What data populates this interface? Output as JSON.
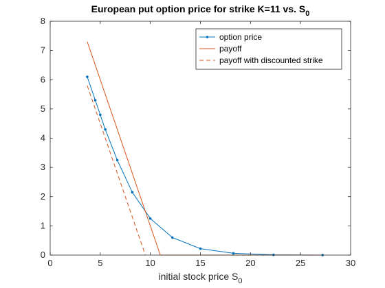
{
  "chart_data": {
    "type": "line",
    "title": "European put option price for strike K=11 vs. S",
    "title_subscript": "0",
    "xlabel": "initial stock price S",
    "xlabel_subscript": "0",
    "ylabel": "",
    "xlim": [
      0,
      30
    ],
    "ylim": [
      0,
      8
    ],
    "xticks": [
      0,
      5,
      10,
      15,
      20,
      25,
      30
    ],
    "yticks": [
      0,
      1,
      2,
      3,
      4,
      5,
      6,
      7,
      8
    ],
    "grid": false,
    "legend_position": "top-right",
    "series": [
      {
        "name": "option price",
        "style": "line-with-dot-markers",
        "color": "#0072BD",
        "x": [
          3.7,
          4.5,
          5.0,
          5.5,
          6.7,
          8.2,
          10.0,
          12.2,
          15.0,
          18.3,
          22.3,
          27.2
        ],
        "y": [
          6.1,
          5.3,
          4.8,
          4.3,
          3.25,
          2.15,
          1.25,
          0.6,
          0.22,
          0.06,
          0.01,
          0.0
        ]
      },
      {
        "name": "payoff",
        "style": "solid",
        "color": "#D95319",
        "x": [
          3.7,
          11.0,
          27.2
        ],
        "y": [
          7.3,
          0.0,
          0.0
        ]
      },
      {
        "name": "payoff with discounted strike",
        "style": "dashed",
        "color": "#D95319",
        "x": [
          3.7,
          9.5
        ],
        "y": [
          5.8,
          0.0
        ]
      }
    ]
  }
}
